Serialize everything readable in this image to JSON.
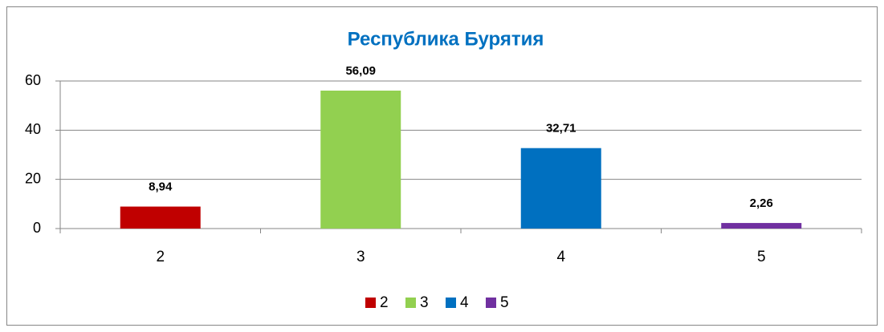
{
  "chart_data": {
    "type": "bar",
    "title": "Республика Бурятия",
    "categories": [
      "2",
      "3",
      "4",
      "5"
    ],
    "values": [
      8.94,
      56.09,
      32.71,
      2.26
    ],
    "value_labels": [
      "8,94",
      "56,09",
      "32,71",
      "2,26"
    ],
    "colors": [
      "#c00000",
      "#92d050",
      "#0070c0",
      "#7030a0"
    ],
    "ylim": [
      0,
      60
    ],
    "yticks": [
      0,
      20,
      40,
      60
    ],
    "grid": true,
    "legend": "bottom"
  }
}
